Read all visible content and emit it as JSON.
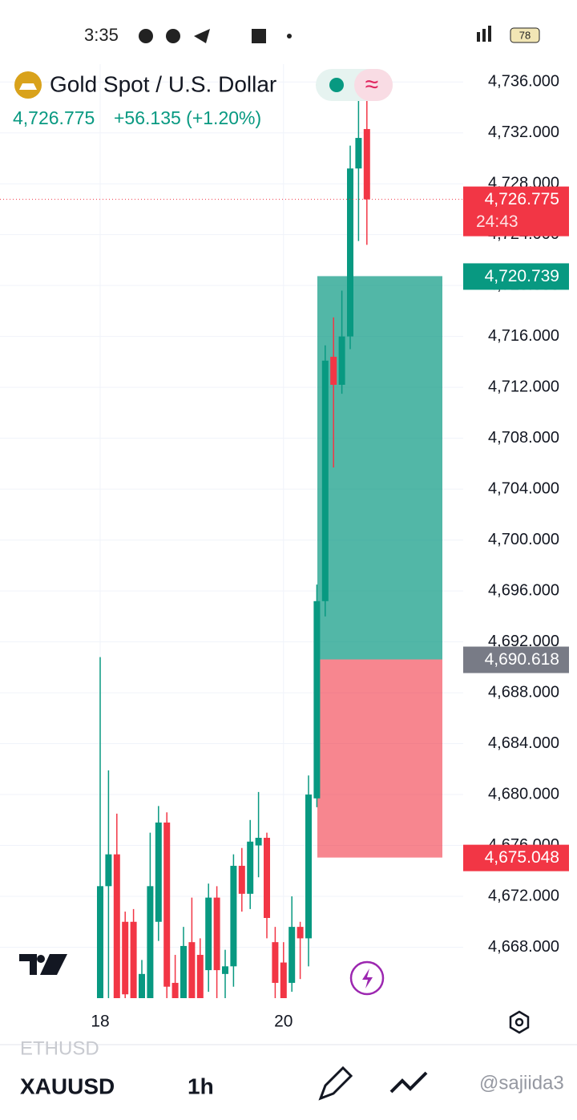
{
  "status_bar": {
    "time": "3:35",
    "battery": "78"
  },
  "header": {
    "title": "Gold Spot / U.S. Dollar",
    "price": "4,726.775",
    "change": "+56.135 (+1.20%)"
  },
  "chart_data": {
    "type": "candlestick",
    "categories": [
      "18",
      null,
      null,
      null,
      null,
      null,
      null,
      null,
      null,
      null,
      null,
      null,
      null,
      null,
      null,
      null,
      null,
      null,
      null,
      null,
      null,
      null,
      "20",
      null,
      null,
      null,
      null,
      null,
      null,
      null,
      null,
      null,
      null
    ],
    "open": [
      4664.0,
      4672.8,
      4675.3,
      4670.0,
      4670.0,
      4664.0,
      4664.0,
      4670.0,
      4677.8,
      4665.2,
      4664.0,
      4668.4,
      4667.4,
      4666.2,
      4671.9,
      4665.9,
      4666.5,
      4674.4,
      4672.2,
      4676.0,
      4676.6,
      4668.4,
      4666.8,
      4665.2,
      4669.6,
      4668.7,
      4679.7,
      4695.2,
      4714.4,
      4712.2,
      4716.0,
      4729.2,
      4732.3
    ],
    "high": [
      4690.8,
      4681.9,
      4678.5,
      4670.8,
      4671.0,
      4667.0,
      4677.0,
      4679.1,
      4678.6,
      4667.4,
      4669.6,
      4671.9,
      4668.7,
      4673.0,
      4672.8,
      4667.8,
      4675.3,
      4675.8,
      4678.0,
      4680.2,
      4677.0,
      4669.6,
      4668.4,
      4672.0,
      4670.0,
      4681.5,
      4696.5,
      4715.3,
      4717.5,
      4719.6,
      4731.0,
      4737.0,
      4734.9
    ],
    "low": [
      4664.0,
      4664.0,
      4664.0,
      4664.0,
      4664.0,
      4664.0,
      4664.0,
      4668.5,
      4664.0,
      4664.0,
      4664.0,
      4664.0,
      4664.0,
      4664.5,
      4664.0,
      4664.0,
      4664.9,
      4670.8,
      4671.0,
      4673.5,
      4668.7,
      4664.0,
      4664.0,
      4664.5,
      4665.5,
      4666.5,
      4679.0,
      4694.0,
      4705.7,
      4711.5,
      4715.0,
      4723.5,
      4723.2
    ],
    "close": [
      4672.8,
      4675.3,
      4664.0,
      4664.3,
      4664.0,
      4665.9,
      4672.8,
      4677.8,
      4664.9,
      4664.0,
      4668.1,
      4664.0,
      4664.0,
      4671.9,
      4666.2,
      4666.5,
      4674.4,
      4672.2,
      4676.3,
      4676.6,
      4670.3,
      4665.2,
      4664.0,
      4669.6,
      4668.7,
      4680.0,
      4695.2,
      4714.1,
      4712.2,
      4716.0,
      4729.2,
      4731.6,
      4726.775
    ],
    "up_color": "#089981",
    "down_color": "#f23645",
    "ylim": [
      4664.0,
      4737.4
    ],
    "yticks": [
      {
        "value": 4668,
        "label": "4,668.000"
      },
      {
        "value": 4672,
        "label": "4,672.000"
      },
      {
        "value": 4676,
        "label": "4,676.000"
      },
      {
        "value": 4680,
        "label": "4,680.000"
      },
      {
        "value": 4684,
        "label": "4,684.000"
      },
      {
        "value": 4688,
        "label": "4,688.000"
      },
      {
        "value": 4692,
        "label": "4,692.000"
      },
      {
        "value": 4696,
        "label": "4,696.000"
      },
      {
        "value": 4700,
        "label": "4,700.000"
      },
      {
        "value": 4704,
        "label": "4,704.000"
      },
      {
        "value": 4708,
        "label": "4,708.000"
      },
      {
        "value": 4712,
        "label": "4,712.000"
      },
      {
        "value": 4716,
        "label": "4,716.000"
      },
      {
        "value": 4720,
        "label": "4,720.000"
      },
      {
        "value": 4724,
        "label": "4,724.000"
      },
      {
        "value": 4728,
        "label": "4,728.000"
      },
      {
        "value": 4732,
        "label": "4,732.000"
      },
      {
        "value": 4736,
        "label": "4,736.000"
      }
    ],
    "grid": true,
    "markers": [
      {
        "value": 4726.775,
        "label": "4,726.775",
        "countdown": "24:43",
        "color": "#f23645"
      },
      {
        "value": 4720.739,
        "label": "4,720.739",
        "color": "#089981"
      },
      {
        "value": 4690.618,
        "label": "4,690.618",
        "color": "#787b86"
      },
      {
        "value": 4675.048,
        "label": "4,675.048",
        "color": "#f23645"
      }
    ]
  },
  "toolbar": {
    "prev_symbol": "ETHUSD",
    "symbol": "XAUUSD",
    "interval": "1h",
    "watermark": "@sajiida3"
  }
}
